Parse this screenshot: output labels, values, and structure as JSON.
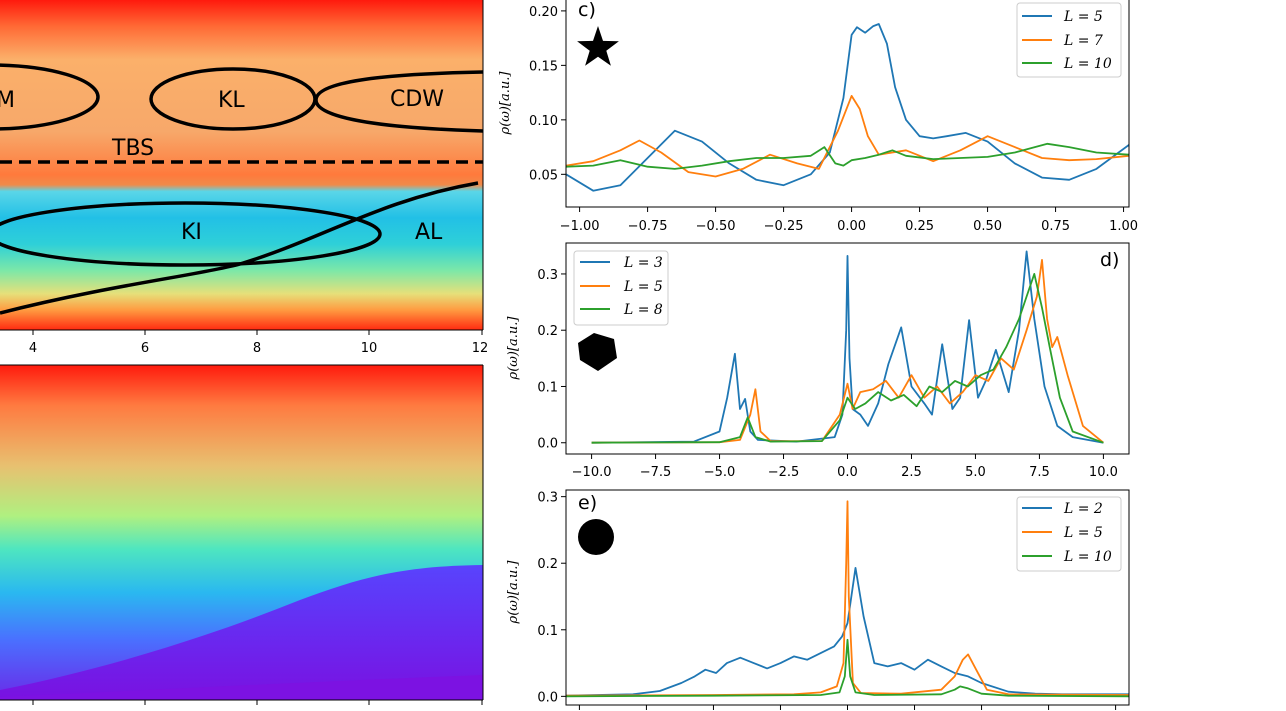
{
  "chart_data": [
    {
      "id": "phase-diagram",
      "type": "heatmap",
      "xticks": [
        "4",
        "6",
        "8",
        "10",
        "12"
      ],
      "region_labels": [
        "M",
        "KL",
        "CDW",
        "TBS",
        "KI",
        "AL"
      ],
      "boundary": "dashed line at TBS",
      "colormap": "rainbow"
    },
    {
      "id": "gradient-map",
      "type": "heatmap",
      "colormap": "rainbow"
    },
    {
      "id": "panel-c",
      "type": "line",
      "panel_label": "c)",
      "marker": "star",
      "ylabel": "ρ(ω)[a.u.]",
      "xlim": [
        -1.05,
        1.02
      ],
      "ylim": [
        0.02,
        0.21
      ],
      "xticks": [
        "−1.00",
        "−0.75",
        "−0.50",
        "−0.25",
        "0.00",
        "0.25",
        "0.50",
        "0.75",
        "1.00"
      ],
      "yticks": [
        "0.05",
        "0.10",
        "0.15",
        "0.20"
      ],
      "legend": [
        "L = 5",
        "L = 7",
        "L = 10"
      ],
      "series": [
        {
          "name": "L = 5",
          "color": "#1f77b4",
          "x": [
            -1.05,
            -0.95,
            -0.85,
            -0.75,
            -0.65,
            -0.55,
            -0.45,
            -0.35,
            -0.25,
            -0.15,
            -0.08,
            -0.03,
            0.0,
            0.02,
            0.05,
            0.08,
            0.1,
            0.13,
            0.16,
            0.2,
            0.25,
            0.3,
            0.35,
            0.42,
            0.5,
            0.6,
            0.7,
            0.8,
            0.9,
            1.02
          ],
          "y": [
            0.05,
            0.035,
            0.04,
            0.065,
            0.09,
            0.08,
            0.06,
            0.045,
            0.04,
            0.05,
            0.07,
            0.12,
            0.178,
            0.185,
            0.18,
            0.186,
            0.188,
            0.17,
            0.13,
            0.1,
            0.085,
            0.083,
            0.085,
            0.088,
            0.08,
            0.06,
            0.047,
            0.045,
            0.055,
            0.077
          ]
        },
        {
          "name": "L = 7",
          "color": "#ff7f0e",
          "x": [
            -1.05,
            -0.95,
            -0.85,
            -0.78,
            -0.7,
            -0.6,
            -0.5,
            -0.4,
            -0.3,
            -0.2,
            -0.12,
            -0.05,
            0.0,
            0.03,
            0.06,
            0.1,
            0.15,
            0.2,
            0.3,
            0.4,
            0.5,
            0.6,
            0.7,
            0.8,
            0.9,
            1.02
          ],
          "y": [
            0.058,
            0.062,
            0.072,
            0.081,
            0.07,
            0.052,
            0.048,
            0.055,
            0.068,
            0.06,
            0.055,
            0.09,
            0.122,
            0.11,
            0.085,
            0.068,
            0.07,
            0.072,
            0.062,
            0.072,
            0.085,
            0.075,
            0.065,
            0.063,
            0.064,
            0.067
          ]
        },
        {
          "name": "L = 10",
          "color": "#2ca02c",
          "x": [
            -1.05,
            -0.95,
            -0.85,
            -0.75,
            -0.65,
            -0.55,
            -0.45,
            -0.35,
            -0.25,
            -0.15,
            -0.1,
            -0.06,
            -0.03,
            0.0,
            0.05,
            0.1,
            0.15,
            0.2,
            0.3,
            0.4,
            0.5,
            0.6,
            0.72,
            0.8,
            0.9,
            1.02
          ],
          "y": [
            0.057,
            0.058,
            0.063,
            0.057,
            0.055,
            0.058,
            0.062,
            0.065,
            0.065,
            0.067,
            0.075,
            0.06,
            0.058,
            0.063,
            0.065,
            0.068,
            0.072,
            0.067,
            0.064,
            0.065,
            0.066,
            0.07,
            0.078,
            0.075,
            0.07,
            0.068
          ]
        }
      ]
    },
    {
      "id": "panel-d",
      "type": "line",
      "panel_label": "d)",
      "marker": "pentagon",
      "ylabel": "ρ(ω)[a.u.]",
      "xlim": [
        -11.0,
        11.0
      ],
      "ylim": [
        -0.02,
        0.355
      ],
      "xticks": [
        "−10.0",
        "−7.5",
        "−5.0",
        "−2.5",
        "0.0",
        "2.5",
        "5.0",
        "7.5",
        "10.0"
      ],
      "yticks": [
        "0.0",
        "0.1",
        "0.2",
        "0.3"
      ],
      "legend": [
        "L = 3",
        "L = 5",
        "L = 8"
      ],
      "series": [
        {
          "name": "L = 3",
          "color": "#1f77b4",
          "x": [
            -10,
            -6,
            -5,
            -4.7,
            -4.4,
            -4.2,
            -4.0,
            -3.8,
            -3.5,
            -2,
            -0.5,
            -0.2,
            -0.05,
            0.0,
            0.08,
            0.2,
            0.5,
            0.8,
            1.2,
            1.6,
            2.1,
            2.5,
            3.0,
            3.3,
            3.7,
            4.1,
            4.4,
            4.75,
            5.1,
            5.4,
            5.8,
            6.3,
            6.7,
            7.0,
            7.3,
            7.7,
            8.2,
            8.8,
            10
          ],
          "y": [
            0.0,
            0.002,
            0.02,
            0.08,
            0.158,
            0.06,
            0.078,
            0.02,
            0.005,
            0.002,
            0.01,
            0.05,
            0.2,
            0.332,
            0.15,
            0.06,
            0.05,
            0.03,
            0.07,
            0.14,
            0.205,
            0.1,
            0.07,
            0.05,
            0.175,
            0.06,
            0.08,
            0.218,
            0.08,
            0.11,
            0.165,
            0.09,
            0.2,
            0.34,
            0.22,
            0.1,
            0.03,
            0.01,
            0.0
          ]
        },
        {
          "name": "L = 5",
          "color": "#ff7f0e",
          "x": [
            -10,
            -5,
            -4.2,
            -3.8,
            -3.6,
            -3.4,
            -3,
            -1,
            -0.3,
            0.0,
            0.2,
            0.5,
            1.0,
            1.5,
            2.0,
            2.5,
            3.0,
            3.5,
            4.0,
            4.5,
            5.0,
            5.5,
            6.0,
            6.5,
            7.0,
            7.4,
            7.6,
            7.8,
            8.0,
            8.2,
            8.6,
            9.2,
            10
          ],
          "y": [
            0.0,
            0.001,
            0.005,
            0.05,
            0.095,
            0.02,
            0.003,
            0.003,
            0.05,
            0.105,
            0.06,
            0.09,
            0.095,
            0.11,
            0.08,
            0.12,
            0.08,
            0.1,
            0.07,
            0.09,
            0.12,
            0.11,
            0.15,
            0.13,
            0.2,
            0.26,
            0.325,
            0.22,
            0.17,
            0.188,
            0.12,
            0.03,
            0.0
          ]
        },
        {
          "name": "L = 8",
          "color": "#2ca02c",
          "x": [
            -10,
            -5,
            -4.2,
            -3.9,
            -3.6,
            -3,
            -1,
            -0.3,
            0.0,
            0.3,
            0.7,
            1.2,
            1.7,
            2.2,
            2.7,
            3.2,
            3.7,
            4.2,
            4.7,
            5.2,
            5.7,
            6.2,
            6.7,
            7.0,
            7.3,
            7.6,
            7.9,
            8.3,
            8.8,
            10
          ],
          "y": [
            0.0,
            0.001,
            0.01,
            0.045,
            0.01,
            0.002,
            0.003,
            0.04,
            0.08,
            0.06,
            0.07,
            0.09,
            0.075,
            0.085,
            0.065,
            0.1,
            0.09,
            0.11,
            0.1,
            0.12,
            0.13,
            0.17,
            0.22,
            0.26,
            0.3,
            0.24,
            0.17,
            0.08,
            0.02,
            0.0
          ]
        }
      ]
    },
    {
      "id": "panel-e",
      "type": "line",
      "panel_label": "e)",
      "marker": "circle",
      "ylabel": "ρ(ω)[a.u.]",
      "xlim": [
        -10.5,
        10.5
      ],
      "ylim": [
        -0.013,
        0.31
      ],
      "yticks": [
        "0.0",
        "0.1",
        "0.2",
        "0.3"
      ],
      "legend": [
        "L = 2",
        "L = 5",
        "L = 10"
      ],
      "series": [
        {
          "name": "L = 2",
          "color": "#1f77b4",
          "x": [
            -10.5,
            -8,
            -7,
            -6.2,
            -5.7,
            -5.3,
            -4.9,
            -4.5,
            -4,
            -3.5,
            -3,
            -2.5,
            -2,
            -1.5,
            -1,
            -0.5,
            -0.2,
            0.0,
            0.3,
            0.6,
            1,
            1.5,
            2,
            2.5,
            3,
            3.5,
            4,
            4.5,
            5,
            6,
            7,
            8,
            10.5
          ],
          "y": [
            0.001,
            0.003,
            0.008,
            0.02,
            0.03,
            0.04,
            0.035,
            0.05,
            0.058,
            0.05,
            0.042,
            0.05,
            0.06,
            0.055,
            0.065,
            0.075,
            0.09,
            0.11,
            0.193,
            0.12,
            0.05,
            0.045,
            0.05,
            0.04,
            0.055,
            0.045,
            0.035,
            0.03,
            0.02,
            0.007,
            0.004,
            0.003,
            0.003
          ]
        },
        {
          "name": "L = 5",
          "color": "#ff7f0e",
          "x": [
            -10.5,
            -5,
            -2,
            -1,
            -0.4,
            -0.15,
            -0.05,
            0.0,
            0.05,
            0.2,
            0.5,
            2,
            3.5,
            4.0,
            4.3,
            4.5,
            4.8,
            5.2,
            6,
            10.5
          ],
          "y": [
            0.001,
            0.002,
            0.003,
            0.006,
            0.015,
            0.05,
            0.2,
            0.293,
            0.15,
            0.02,
            0.005,
            0.004,
            0.01,
            0.03,
            0.055,
            0.063,
            0.04,
            0.01,
            0.003,
            0.002
          ]
        },
        {
          "name": "L = 10",
          "color": "#2ca02c",
          "x": [
            -10.5,
            -5,
            -1,
            -0.3,
            -0.1,
            0.0,
            0.1,
            0.3,
            1,
            3.5,
            4.0,
            4.2,
            4.5,
            5.0,
            6,
            10.5
          ],
          "y": [
            0.0,
            0.001,
            0.002,
            0.006,
            0.03,
            0.085,
            0.03,
            0.006,
            0.002,
            0.003,
            0.01,
            0.015,
            0.012,
            0.004,
            0.001,
            0.0
          ]
        }
      ]
    }
  ]
}
